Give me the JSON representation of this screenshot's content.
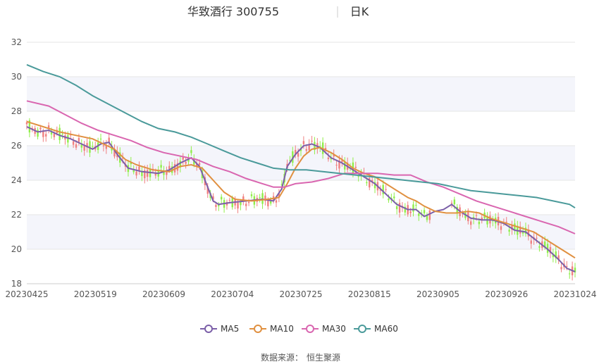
{
  "chart_data": {
    "type": "candlestick",
    "title": "华致酒行 300755",
    "period": "日K",
    "source_label": "数据来源：",
    "source_name": "恒生聚源",
    "ylim": [
      18,
      32
    ],
    "yticks": [
      18,
      20,
      22,
      24,
      26,
      28,
      30,
      32
    ],
    "x_tick_labels": [
      "20230425",
      "20230519",
      "20230609",
      "20230704",
      "20230725",
      "20230815",
      "20230905",
      "20230926",
      "20231024"
    ],
    "grid": true,
    "legend_position": "bottom",
    "colors": {
      "up": "#f08080",
      "down": "#90ee4a",
      "MA5": "#7b5fa8",
      "MA10": "#e09040",
      "MA30": "#d966b0",
      "MA60": "#4a9a9a",
      "grid": "#e6e6e6",
      "band": "#f4f5fb"
    },
    "moving_averages": [
      {
        "name": "MA5",
        "points": [
          [
            0,
            27.1
          ],
          [
            4,
            26.8
          ],
          [
            8,
            26.9
          ],
          [
            12,
            26.6
          ],
          [
            16,
            26.4
          ],
          [
            20,
            26.1
          ],
          [
            24,
            25.8
          ],
          [
            27,
            26.1
          ],
          [
            30,
            26.2
          ],
          [
            33,
            25.5
          ],
          [
            37,
            24.7
          ],
          [
            42,
            24.5
          ],
          [
            48,
            24.4
          ],
          [
            52,
            24.6
          ],
          [
            56,
            25.0
          ],
          [
            60,
            25.3
          ],
          [
            63,
            24.8
          ],
          [
            66,
            23.6
          ],
          [
            68,
            22.8
          ],
          [
            70,
            22.6
          ],
          [
            74,
            22.7
          ],
          [
            80,
            22.8
          ],
          [
            86,
            22.9
          ],
          [
            90,
            22.8
          ],
          [
            93,
            23.5
          ],
          [
            95,
            24.8
          ],
          [
            98,
            25.5
          ],
          [
            101,
            26.0
          ],
          [
            104,
            26.1
          ],
          [
            107,
            25.9
          ],
          [
            111,
            25.3
          ],
          [
            115,
            25.0
          ],
          [
            119,
            24.6
          ],
          [
            123,
            24.2
          ],
          [
            127,
            23.8
          ],
          [
            131,
            23.2
          ],
          [
            135,
            22.6
          ],
          [
            139,
            22.3
          ],
          [
            142,
            22.3
          ],
          [
            145,
            21.9
          ],
          [
            149,
            22.2
          ],
          [
            152,
            22.3
          ],
          [
            155,
            22.6
          ],
          [
            158,
            22.2
          ],
          [
            162,
            21.8
          ],
          [
            166,
            21.7
          ],
          [
            170,
            21.7
          ],
          [
            174,
            21.5
          ],
          [
            178,
            21.1
          ],
          [
            182,
            21.0
          ],
          [
            186,
            20.5
          ],
          [
            190,
            20.0
          ],
          [
            194,
            19.4
          ],
          [
            197,
            18.9
          ],
          [
            200,
            18.7
          ]
        ]
      },
      {
        "name": "MA10",
        "points": [
          [
            0,
            27.4
          ],
          [
            6,
            27.1
          ],
          [
            12,
            26.8
          ],
          [
            18,
            26.6
          ],
          [
            24,
            26.4
          ],
          [
            28,
            26.1
          ],
          [
            32,
            25.8
          ],
          [
            36,
            25.2
          ],
          [
            40,
            24.9
          ],
          [
            46,
            24.6
          ],
          [
            52,
            24.5
          ],
          [
            56,
            24.8
          ],
          [
            60,
            24.9
          ],
          [
            64,
            24.7
          ],
          [
            68,
            24.0
          ],
          [
            72,
            23.3
          ],
          [
            76,
            22.9
          ],
          [
            82,
            22.8
          ],
          [
            88,
            22.9
          ],
          [
            92,
            23.0
          ],
          [
            95,
            23.8
          ],
          [
            98,
            24.7
          ],
          [
            101,
            25.4
          ],
          [
            104,
            25.8
          ],
          [
            107,
            25.9
          ],
          [
            111,
            25.6
          ],
          [
            115,
            25.2
          ],
          [
            119,
            24.7
          ],
          [
            123,
            24.4
          ],
          [
            127,
            24.2
          ],
          [
            131,
            23.8
          ],
          [
            135,
            23.4
          ],
          [
            139,
            23.0
          ],
          [
            142,
            22.8
          ],
          [
            145,
            22.5
          ],
          [
            149,
            22.2
          ],
          [
            153,
            22.1
          ],
          [
            157,
            22.1
          ],
          [
            161,
            22.2
          ],
          [
            165,
            22.1
          ],
          [
            169,
            21.8
          ],
          [
            173,
            21.6
          ],
          [
            177,
            21.4
          ],
          [
            181,
            21.2
          ],
          [
            185,
            21.0
          ],
          [
            189,
            20.6
          ],
          [
            193,
            20.2
          ],
          [
            197,
            19.8
          ],
          [
            200,
            19.5
          ]
        ]
      },
      {
        "name": "MA30",
        "points": [
          [
            0,
            28.6
          ],
          [
            8,
            28.3
          ],
          [
            14,
            27.8
          ],
          [
            20,
            27.3
          ],
          [
            26,
            26.9
          ],
          [
            32,
            26.6
          ],
          [
            38,
            26.3
          ],
          [
            44,
            25.9
          ],
          [
            50,
            25.6
          ],
          [
            56,
            25.4
          ],
          [
            62,
            25.2
          ],
          [
            68,
            24.8
          ],
          [
            74,
            24.5
          ],
          [
            80,
            24.1
          ],
          [
            86,
            23.8
          ],
          [
            90,
            23.6
          ],
          [
            94,
            23.6
          ],
          [
            98,
            23.8
          ],
          [
            104,
            23.9
          ],
          [
            110,
            24.1
          ],
          [
            116,
            24.4
          ],
          [
            122,
            24.4
          ],
          [
            128,
            24.4
          ],
          [
            134,
            24.3
          ],
          [
            140,
            24.3
          ],
          [
            146,
            23.9
          ],
          [
            152,
            23.6
          ],
          [
            158,
            23.2
          ],
          [
            164,
            22.8
          ],
          [
            170,
            22.5
          ],
          [
            176,
            22.2
          ],
          [
            182,
            21.9
          ],
          [
            188,
            21.6
          ],
          [
            194,
            21.3
          ],
          [
            200,
            20.9
          ]
        ]
      },
      {
        "name": "MA60",
        "points": [
          [
            0,
            30.7
          ],
          [
            6,
            30.3
          ],
          [
            12,
            30.0
          ],
          [
            18,
            29.5
          ],
          [
            24,
            28.9
          ],
          [
            30,
            28.4
          ],
          [
            36,
            27.9
          ],
          [
            42,
            27.4
          ],
          [
            48,
            27.0
          ],
          [
            54,
            26.8
          ],
          [
            60,
            26.5
          ],
          [
            66,
            26.1
          ],
          [
            72,
            25.7
          ],
          [
            78,
            25.3
          ],
          [
            84,
            25.0
          ],
          [
            90,
            24.7
          ],
          [
            96,
            24.6
          ],
          [
            102,
            24.6
          ],
          [
            108,
            24.5
          ],
          [
            114,
            24.4
          ],
          [
            120,
            24.3
          ],
          [
            126,
            24.2
          ],
          [
            132,
            24.1
          ],
          [
            138,
            24.0
          ],
          [
            144,
            23.9
          ],
          [
            150,
            23.8
          ],
          [
            156,
            23.6
          ],
          [
            162,
            23.4
          ],
          [
            168,
            23.3
          ],
          [
            174,
            23.2
          ],
          [
            180,
            23.1
          ],
          [
            186,
            23.0
          ],
          [
            192,
            22.8
          ],
          [
            198,
            22.6
          ],
          [
            200,
            22.4
          ]
        ]
      }
    ]
  }
}
